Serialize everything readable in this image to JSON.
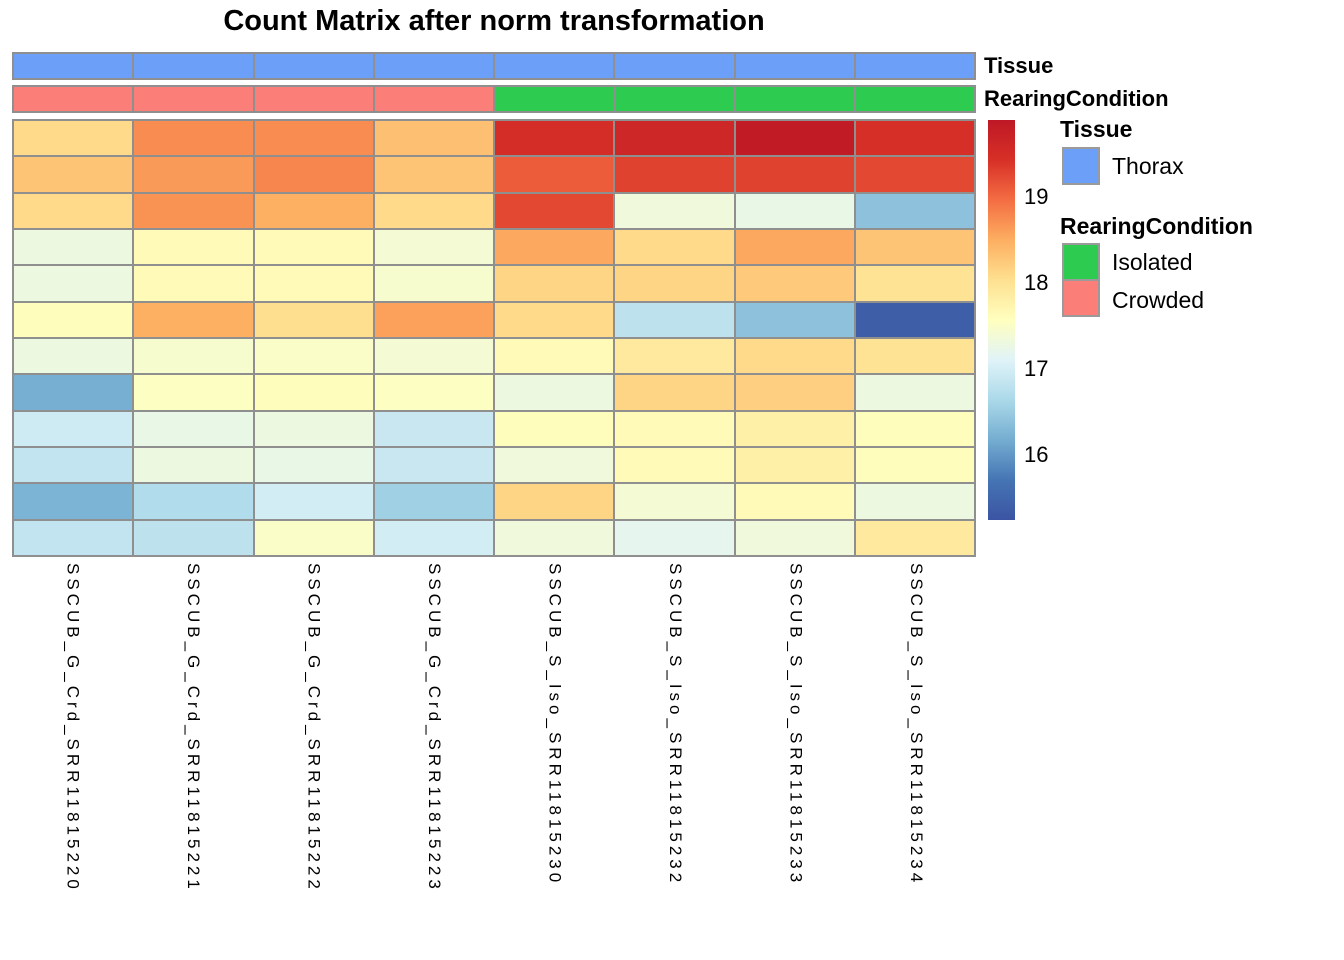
{
  "title": "Count Matrix after norm transformation",
  "annotation_tracks": {
    "tissue": {
      "label": "Tissue",
      "values": [
        "Thorax",
        "Thorax",
        "Thorax",
        "Thorax",
        "Thorax",
        "Thorax",
        "Thorax",
        "Thorax"
      ]
    },
    "rearing": {
      "label": "RearingCondition",
      "values": [
        "Crowded",
        "Crowded",
        "Crowded",
        "Crowded",
        "Isolated",
        "Isolated",
        "Isolated",
        "Isolated"
      ]
    }
  },
  "annotation_colors": {
    "Thorax": "#6C9FF8",
    "Isolated": "#2DCB50",
    "Crowded": "#FB7F78"
  },
  "legend": {
    "tissue_title": "Tissue",
    "tissue_items": [
      {
        "label": "Thorax",
        "color": "#6C9FF8"
      }
    ],
    "rearing_title": "RearingCondition",
    "rearing_items": [
      {
        "label": "Isolated",
        "color": "#2DCB50"
      },
      {
        "label": "Crowded",
        "color": "#FB7F78"
      }
    ]
  },
  "colorbar": {
    "ticks": [
      "19",
      "18",
      "17",
      "16"
    ],
    "vmin": 15.25,
    "vmax": 19.9,
    "stops": [
      [
        0.0,
        "#3B54A3"
      ],
      [
        0.1,
        "#4575B4"
      ],
      [
        0.2,
        "#74ADD1"
      ],
      [
        0.3,
        "#ABD9E9"
      ],
      [
        0.4,
        "#E0F3F8"
      ],
      [
        0.5,
        "#FFFFBF"
      ],
      [
        0.6,
        "#FEE090"
      ],
      [
        0.7,
        "#FDAE61"
      ],
      [
        0.8,
        "#F46D43"
      ],
      [
        0.9,
        "#D73027"
      ],
      [
        1.0,
        "#BE1826"
      ]
    ]
  },
  "chart_data": {
    "type": "heatmap",
    "title": "Count Matrix after norm transformation",
    "columns": [
      "SSCUB_G_Crd_SRR11815220",
      "SSCUB_G_Crd_SRR11815221",
      "SSCUB_G_Crd_SRR11815222",
      "SSCUB_G_Crd_SRR11815223",
      "SSCUB_S_Iso_SRR11815230",
      "SSCUB_S_Iso_SRR11815232",
      "SSCUB_S_Iso_SRR11815233",
      "SSCUB_S_Iso_SRR11815234"
    ],
    "row_count": 12,
    "row_labels_shown": false,
    "values": [
      [
        18.1,
        18.75,
        18.75,
        18.35,
        19.5,
        19.6,
        19.85,
        19.45
      ],
      [
        18.3,
        18.65,
        18.8,
        18.3,
        19.1,
        19.3,
        19.3,
        19.25
      ],
      [
        18.1,
        18.7,
        18.5,
        18.1,
        19.25,
        17.35,
        17.25,
        16.4
      ],
      [
        17.3,
        17.65,
        17.65,
        17.4,
        18.55,
        18.1,
        18.55,
        18.3
      ],
      [
        17.3,
        17.65,
        17.65,
        17.45,
        18.15,
        18.15,
        18.25,
        18.0
      ],
      [
        17.6,
        18.5,
        18.05,
        18.6,
        18.1,
        16.8,
        16.4,
        15.4
      ],
      [
        17.3,
        17.45,
        17.5,
        17.4,
        17.65,
        17.9,
        18.1,
        18.0
      ],
      [
        16.2,
        17.55,
        17.6,
        17.55,
        17.3,
        18.15,
        18.2,
        17.3
      ],
      [
        16.95,
        17.25,
        17.3,
        16.9,
        17.6,
        17.65,
        17.8,
        17.6
      ],
      [
        16.85,
        17.3,
        17.25,
        16.9,
        17.35,
        17.65,
        17.8,
        17.6
      ],
      [
        16.25,
        16.7,
        17.0,
        16.55,
        18.15,
        17.4,
        17.65,
        17.3
      ],
      [
        16.85,
        16.8,
        17.5,
        17.0,
        17.35,
        17.2,
        17.35,
        17.9
      ]
    ],
    "col_annotations": {
      "Tissue": [
        "Thorax",
        "Thorax",
        "Thorax",
        "Thorax",
        "Thorax",
        "Thorax",
        "Thorax",
        "Thorax"
      ],
      "RearingCondition": [
        "Crowded",
        "Crowded",
        "Crowded",
        "Crowded",
        "Isolated",
        "Isolated",
        "Isolated",
        "Isolated"
      ]
    },
    "color_scale": {
      "palette": "RdYlBu reversed",
      "vmin": 15.25,
      "vmax": 19.9
    },
    "legend_position": "right",
    "ylabel": "",
    "xlabel": ""
  },
  "border_color": "#8f8f8f"
}
